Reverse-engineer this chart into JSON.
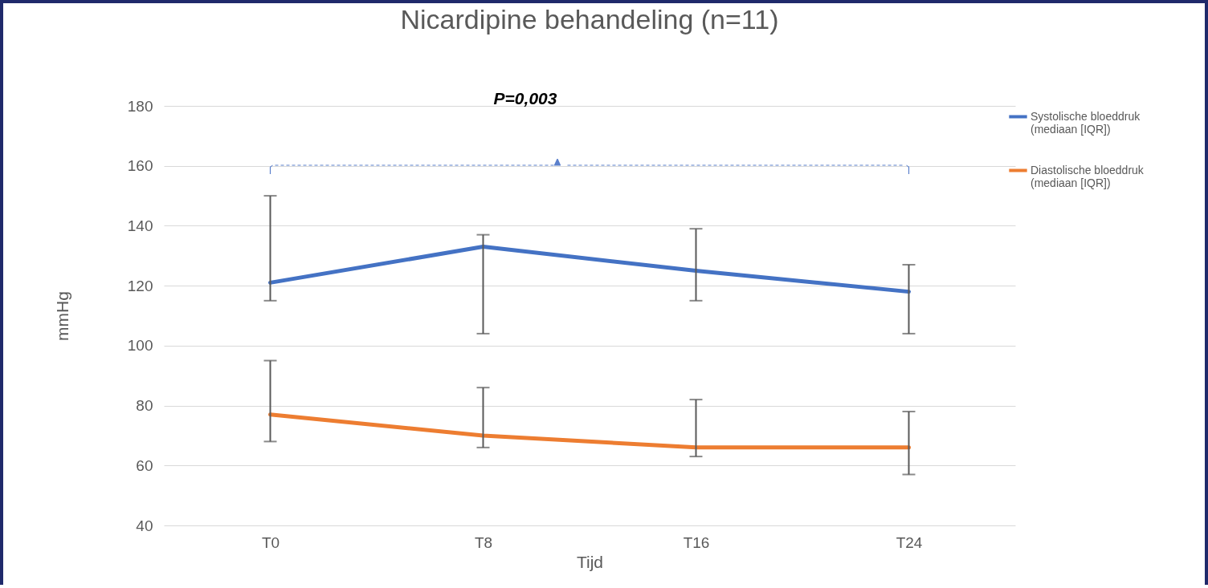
{
  "chart_data": {
    "type": "line",
    "title": "Nicardipine behandeling (n=11)",
    "xlabel": "Tijd",
    "ylabel": "mmHg",
    "categories": [
      "T0",
      "T8",
      "T16",
      "T24"
    ],
    "series": [
      {
        "name": "Systolische bloeddruk (mediaan [IQR])",
        "color": "#4472c4",
        "values": [
          121,
          133,
          125,
          118
        ],
        "errors": [
          [
            115,
            150
          ],
          [
            104,
            137
          ],
          [
            115,
            139
          ],
          [
            104,
            127
          ]
        ]
      },
      {
        "name": "Diastolische bloeddruk (mediaan [IQR])",
        "color": "#ed7d31",
        "values": [
          77,
          70,
          66,
          66
        ],
        "errors": [
          [
            68,
            95
          ],
          [
            66,
            86
          ],
          [
            63,
            82
          ],
          [
            57,
            78
          ]
        ]
      }
    ],
    "ylim": [
      40,
      180
    ],
    "yticks": [
      40,
      60,
      80,
      100,
      120,
      140,
      160,
      180
    ],
    "grid": "y",
    "legend": "right",
    "marker": "none",
    "line_style": "solid",
    "annotations": [
      "P=0,003"
    ]
  }
}
